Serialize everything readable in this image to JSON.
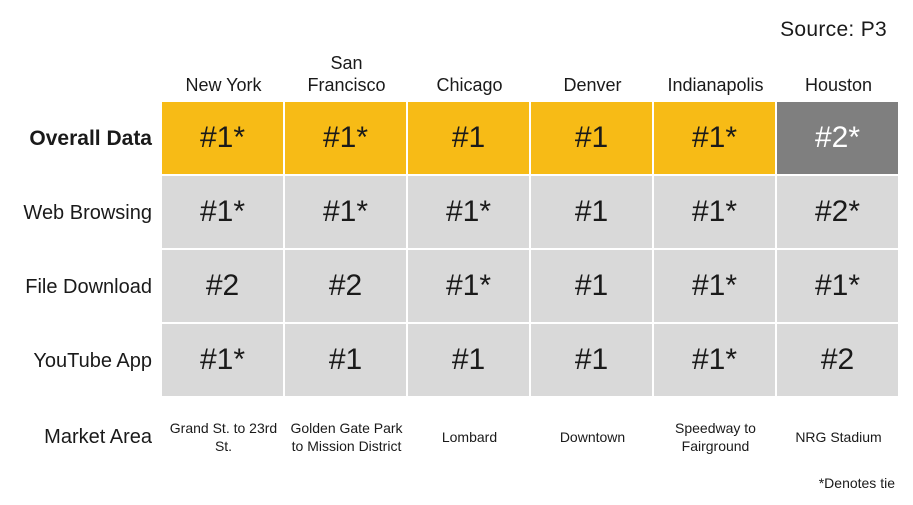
{
  "source": "Source: P3",
  "cities": [
    "New York",
    "San Francisco",
    "Chicago",
    "Denver",
    "Indianapolis",
    "Houston"
  ],
  "rows": [
    {
      "label": "Overall Data",
      "values": [
        "#1*",
        "#1*",
        "#1",
        "#1",
        "#1*",
        "#2*"
      ],
      "colors": [
        "#f7bb16",
        "#f7bb16",
        "#f7bb16",
        "#f7bb16",
        "#f7bb16",
        "#7f7f7f"
      ]
    },
    {
      "label": "Web Browsing",
      "values": [
        "#1*",
        "#1*",
        "#1*",
        "#1",
        "#1*",
        "#2*"
      ]
    },
    {
      "label": "File Download",
      "values": [
        "#2",
        "#2",
        "#1*",
        "#1",
        "#1*",
        "#1*"
      ]
    },
    {
      "label": "YouTube App",
      "values": [
        "#1*",
        "#1",
        "#1",
        "#1",
        "#1*",
        "#2"
      ]
    }
  ],
  "market_area": {
    "label": "Market Area",
    "values": [
      "Grand St. to 23rd St.",
      "Golden Gate Park to Mission District",
      "Lombard",
      "Downtown",
      "Speedway to Fairground",
      "NRG Stadium"
    ]
  },
  "footnote": "*Denotes tie",
  "colors": {
    "gold": "#f7bb16",
    "light_gray": "#d9d9d9",
    "dark_gray": "#7f7f7f"
  }
}
